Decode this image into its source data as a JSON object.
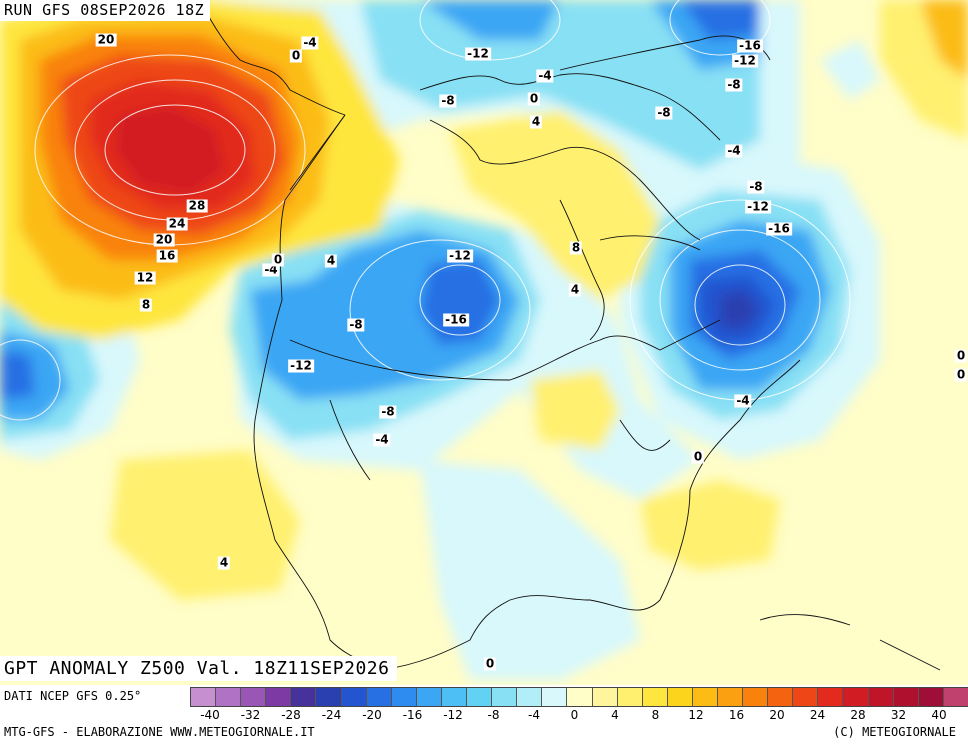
{
  "header": {
    "run_title": "RUN GFS 08SEP2026 18Z"
  },
  "map_title": "GPT ANOMALY Z500 Val. 18Z11SEP2026",
  "footer": {
    "source": "DATI NCEP GFS 0.25°",
    "credit_left": "MTG-GFS - ELABORAZIONE WWW.METEOGIORNALE.IT",
    "credit_right": "(C) METEOGIORNALE"
  },
  "legend": {
    "colors": [
      "#c58fd0",
      "#b072c4",
      "#9a56b5",
      "#7e3aa4",
      "#46329a",
      "#2a3fb0",
      "#2455d0",
      "#2670e4",
      "#2e8cf0",
      "#3aa6f4",
      "#4ebff4",
      "#62d2f4",
      "#88e0f4",
      "#b2eef8",
      "#d8f8fc",
      "#fffdc8",
      "#fff59c",
      "#fff070",
      "#fee63e",
      "#fdd41c",
      "#fcbc14",
      "#fba010",
      "#f9820c",
      "#f46410",
      "#ee4616",
      "#e22a1e",
      "#d21c24",
      "#c01428",
      "#ae102e",
      "#9e0e36",
      "#c0406e"
    ],
    "ticks": [
      "-40",
      "-32",
      "-28",
      "-24",
      "-20",
      "-16",
      "-12",
      "-8",
      "-4",
      "0",
      "4",
      "8",
      "12",
      "16",
      "20",
      "24",
      "28",
      "32",
      "40"
    ]
  },
  "contour_labels": [
    {
      "text": "20"
    },
    {
      "text": "0"
    },
    {
      "text": "-4"
    },
    {
      "text": "-12"
    },
    {
      "text": "-4"
    },
    {
      "text": "-8"
    },
    {
      "text": "0"
    },
    {
      "text": "4"
    },
    {
      "text": "-16"
    },
    {
      "text": "-12"
    },
    {
      "text": "-8"
    },
    {
      "text": "-8"
    },
    {
      "text": "-4"
    },
    {
      "text": "-8"
    },
    {
      "text": "-12"
    },
    {
      "text": "-16"
    },
    {
      "text": "28"
    },
    {
      "text": "24"
    },
    {
      "text": "20"
    },
    {
      "text": "16"
    },
    {
      "text": "12"
    },
    {
      "text": "8"
    },
    {
      "text": "-4"
    },
    {
      "text": "0"
    },
    {
      "text": "4"
    },
    {
      "text": "-12"
    },
    {
      "text": "-8"
    },
    {
      "text": "-16"
    },
    {
      "text": "-12"
    },
    {
      "text": "-8"
    },
    {
      "text": "-4"
    },
    {
      "text": "8"
    },
    {
      "text": "4"
    },
    {
      "text": "-4"
    },
    {
      "text": "0"
    },
    {
      "text": "0"
    },
    {
      "text": "0"
    },
    {
      "text": "4"
    },
    {
      "text": "0"
    }
  ]
}
